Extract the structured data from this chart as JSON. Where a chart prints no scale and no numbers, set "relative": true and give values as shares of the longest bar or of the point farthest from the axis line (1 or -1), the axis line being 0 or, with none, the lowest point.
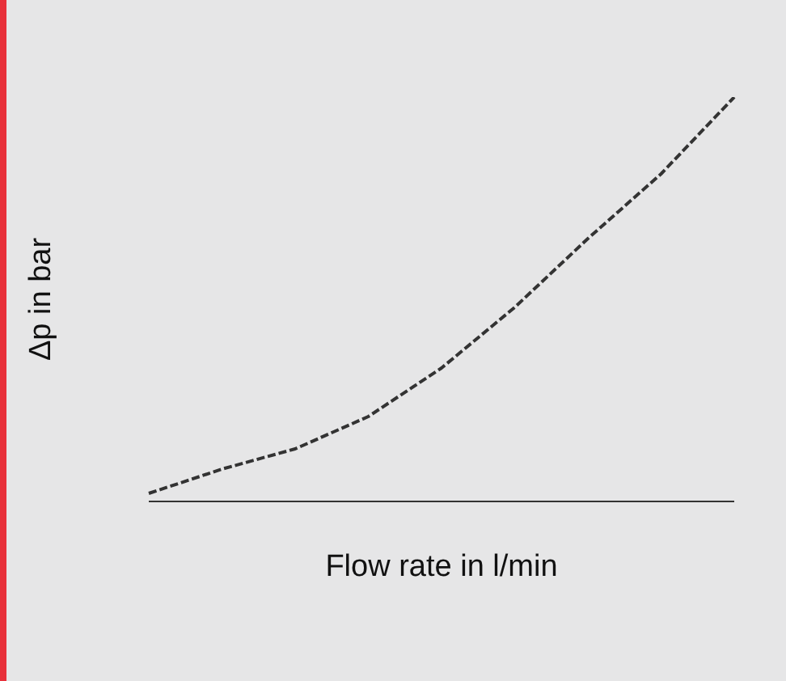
{
  "chart_data": {
    "type": "line",
    "relative": true,
    "xlabel": "Flow rate in l/min",
    "ylabel": "Δp in bar",
    "categories": [
      null,
      null,
      null,
      null,
      null,
      null,
      null,
      null,
      null
    ],
    "series": [
      {
        "color": "#333333",
        "values": [
          0.02,
          0.08,
          0.13,
          0.21,
          0.33,
          0.48,
          0.65,
          0.81,
          1
        ]
      }
    ],
    "line_style": "dashed",
    "marker": "none"
  }
}
